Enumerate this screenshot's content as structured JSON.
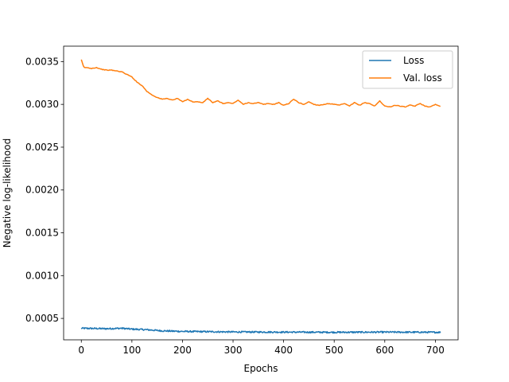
{
  "chart_data": {
    "type": "line",
    "title": "",
    "xlabel": "Epochs",
    "ylabel": "Negative log-likelihood",
    "xlim": [
      -35,
      745
    ],
    "ylim": [
      0.00025,
      0.00368
    ],
    "xticks": [
      0,
      100,
      200,
      300,
      400,
      500,
      600,
      700
    ],
    "yticks": [
      0.0005,
      0.001,
      0.0015,
      0.002,
      0.0025,
      0.003,
      0.0035
    ],
    "ytick_labels": [
      "0.0005",
      "0.0010",
      "0.0015",
      "0.0020",
      "0.0025",
      "0.0030",
      "0.0035"
    ],
    "grid": false,
    "legend_position": "top-right",
    "series": [
      {
        "name": "Loss",
        "color": "#1f77b4",
        "x": [
          0,
          50,
          80,
          100,
          130,
          160,
          200,
          300,
          400,
          500,
          600,
          710
        ],
        "y": [
          0.000385,
          0.00038,
          0.000385,
          0.000375,
          0.000368,
          0.000355,
          0.000348,
          0.000342,
          0.00034,
          0.000338,
          0.00034,
          0.000338
        ]
      },
      {
        "name": "Val. loss",
        "color": "#ff7f0e",
        "x": [
          0,
          5,
          10,
          20,
          30,
          40,
          50,
          60,
          70,
          80,
          90,
          100,
          110,
          120,
          130,
          140,
          150,
          160,
          170,
          180,
          190,
          200,
          210,
          220,
          230,
          240,
          250,
          260,
          270,
          280,
          290,
          300,
          310,
          320,
          330,
          340,
          350,
          360,
          370,
          380,
          390,
          400,
          410,
          420,
          430,
          440,
          450,
          460,
          470,
          480,
          490,
          500,
          510,
          520,
          530,
          540,
          550,
          560,
          570,
          580,
          590,
          600,
          610,
          620,
          630,
          640,
          650,
          660,
          670,
          680,
          690,
          700,
          710
        ],
        "y": [
          0.00352,
          0.00343,
          0.00343,
          0.00342,
          0.00343,
          0.00341,
          0.0034,
          0.0034,
          0.00339,
          0.00338,
          0.00335,
          0.00332,
          0.00326,
          0.00322,
          0.00315,
          0.00311,
          0.00308,
          0.00306,
          0.00307,
          0.00305,
          0.00307,
          0.00303,
          0.00306,
          0.00303,
          0.00303,
          0.00302,
          0.00307,
          0.00302,
          0.00304,
          0.00301,
          0.00302,
          0.00301,
          0.00305,
          0.003,
          0.00302,
          0.00301,
          0.00302,
          0.003,
          0.00301,
          0.003,
          0.00302,
          0.00299,
          0.00301,
          0.00306,
          0.00302,
          0.003,
          0.00303,
          0.003,
          0.00299,
          0.003,
          0.00301,
          0.003,
          0.00299,
          0.00301,
          0.00298,
          0.00302,
          0.00299,
          0.00302,
          0.00301,
          0.00298,
          0.00304,
          0.00298,
          0.00297,
          0.00299,
          0.00298,
          0.00297,
          0.00299,
          0.00298,
          0.00301,
          0.00298,
          0.00297,
          0.003,
          0.00298
        ]
      }
    ]
  }
}
